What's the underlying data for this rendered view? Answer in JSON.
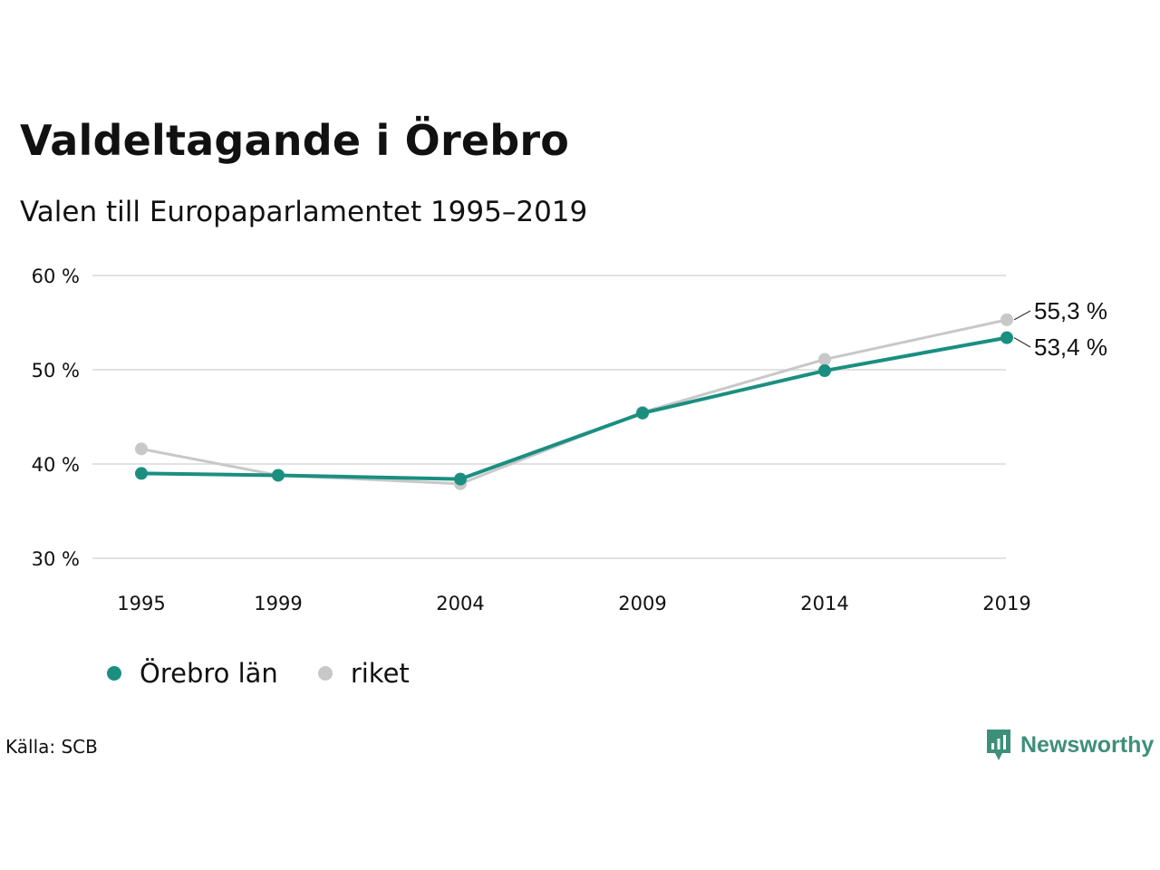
{
  "header": {
    "title": "Valdeltagande i Örebro",
    "subtitle": "Valen till Europaparlamentet 1995–2019"
  },
  "chart_data": {
    "type": "line",
    "title": "Valdeltagande i Örebro",
    "subtitle": "Valen till Europaparlamentet 1995–2019",
    "xlabel": "",
    "ylabel": "",
    "x": [
      1995,
      1999,
      2004,
      2009,
      2014,
      2019
    ],
    "x_tick_labels": [
      "1995",
      "1999",
      "2004",
      "2009",
      "2014",
      "2019"
    ],
    "ylim": [
      30,
      60
    ],
    "y_ticks": [
      30,
      40,
      50,
      60
    ],
    "y_tick_labels": [
      "30 %",
      "40 %",
      "50 %",
      "60 %"
    ],
    "grid": "horizontal",
    "legend_position": "bottom-left",
    "series": [
      {
        "name": "riket",
        "color": "#c8c8c8",
        "values": [
          41.6,
          38.8,
          37.9,
          45.5,
          51.1,
          55.3
        ],
        "end_label": "55,3 %"
      },
      {
        "name": "Örebro län",
        "color": "#1a8f80",
        "values": [
          39.0,
          38.8,
          38.4,
          45.4,
          49.9,
          53.4
        ],
        "end_label": "53,4 %"
      }
    ]
  },
  "legend": {
    "items": [
      {
        "label": "Örebro län",
        "color": "#1a8f80"
      },
      {
        "label": "riket",
        "color": "#c8c8c8"
      }
    ]
  },
  "footer": {
    "source": "Källa: SCB",
    "brand": "Newsworthy",
    "brand_color": "#3e8f7a",
    "brand_icon": "bar-chart-speech-bubble-icon"
  }
}
